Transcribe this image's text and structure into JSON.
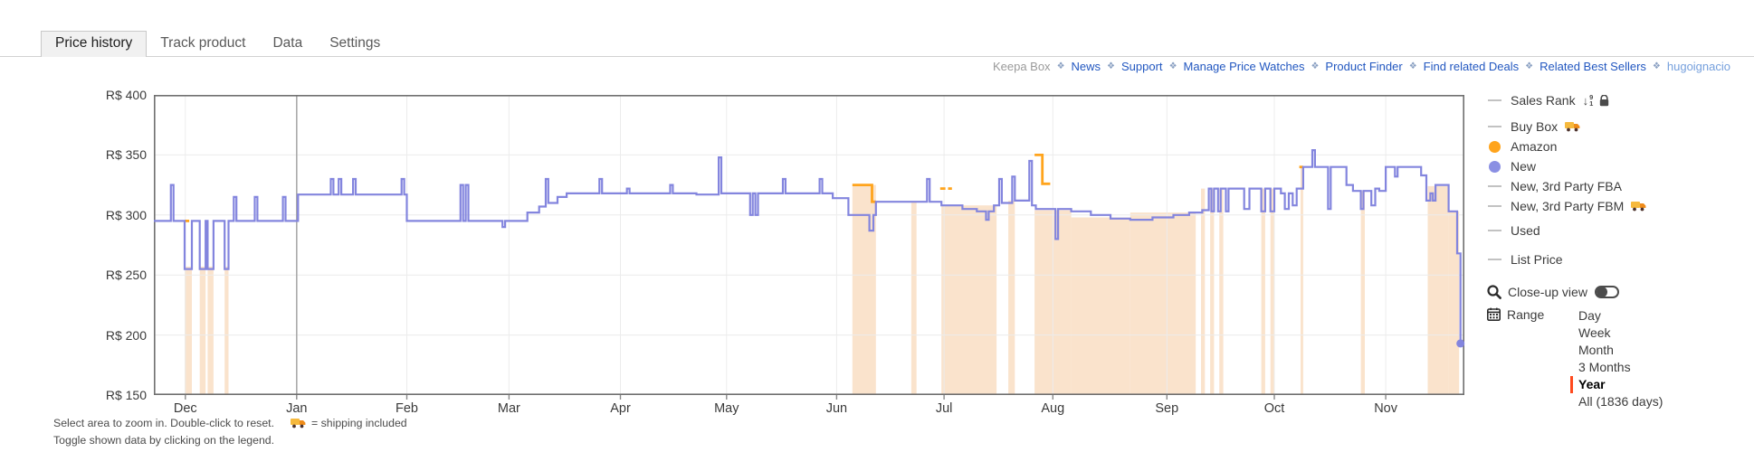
{
  "tabs": [
    {
      "label": "Price history"
    },
    {
      "label": "Track product"
    },
    {
      "label": "Data"
    },
    {
      "label": "Settings"
    }
  ],
  "header": {
    "separator": "❖",
    "links": [
      {
        "label": "Keepa Box"
      },
      {
        "label": "News"
      },
      {
        "label": "Support"
      },
      {
        "label": "Manage Price Watches"
      },
      {
        "label": "Product Finder"
      },
      {
        "label": "Find related Deals"
      },
      {
        "label": "Related Best Sellers"
      },
      {
        "label": "hugoignacio"
      }
    ]
  },
  "legend": {
    "items": [
      {
        "label": "Sales Rank"
      },
      {
        "label": "Buy Box"
      },
      {
        "label": "Amazon"
      },
      {
        "label": "New"
      },
      {
        "label": "New, 3rd Party FBA"
      },
      {
        "label": "New, 3rd Party FBM"
      },
      {
        "label": "Used"
      },
      {
        "label": "List Price"
      }
    ],
    "closeup_label": "Close-up view",
    "range": {
      "label": "Range",
      "options": [
        "Day",
        "Week",
        "Month",
        "3 Months",
        "Year",
        "All (1836 days)"
      ],
      "selected": "Year"
    }
  },
  "footer": {
    "line1": "Select area to zoom in. Double-click to reset.",
    "shipping_note": "= shipping included",
    "line2": "Toggle shown data by clicking on the legend."
  },
  "chart_data": {
    "type": "line",
    "subtype": "step-price-history",
    "currency": "R$",
    "ylim": [
      150,
      400
    ],
    "y_ticks": [
      400,
      350,
      300,
      250,
      200,
      150
    ],
    "y_tick_labels": [
      "R$ 400",
      "R$ 350",
      "R$ 300",
      "R$ 250",
      "R$ 200",
      "R$ 150"
    ],
    "x_months": [
      {
        "label": "Dec",
        "f": 0.024
      },
      {
        "label": "Jan",
        "f": 0.109
      },
      {
        "label": "Feb",
        "f": 0.193
      },
      {
        "label": "Mar",
        "f": 0.271
      },
      {
        "label": "Apr",
        "f": 0.356
      },
      {
        "label": "May",
        "f": 0.437
      },
      {
        "label": "Jun",
        "f": 0.521
      },
      {
        "label": "Jul",
        "f": 0.603
      },
      {
        "label": "Aug",
        "f": 0.686
      },
      {
        "label": "Sep",
        "f": 0.773
      },
      {
        "label": "Oct",
        "f": 0.855
      },
      {
        "label": "Nov",
        "f": 0.94
      }
    ],
    "year_divider_f": 0.109,
    "colors": {
      "new": "#8385DE",
      "amazon": "#FFA41C",
      "band": "#FAE3CC",
      "grid": "#ECECEC",
      "border": "#6F6F6F",
      "year_divider": "#ABABAB"
    },
    "series": [
      {
        "name": "New",
        "style": "step",
        "points": [
          [
            0.0,
            295
          ],
          [
            0.013,
            325
          ],
          [
            0.015,
            295
          ],
          [
            0.0235,
            255
          ],
          [
            0.029,
            295
          ],
          [
            0.035,
            255
          ],
          [
            0.0395,
            295
          ],
          [
            0.041,
            255
          ],
          [
            0.0455,
            295
          ],
          [
            0.054,
            255
          ],
          [
            0.057,
            295
          ],
          [
            0.061,
            315
          ],
          [
            0.063,
            295
          ],
          [
            0.077,
            315
          ],
          [
            0.079,
            295
          ],
          [
            0.0985,
            315
          ],
          [
            0.1005,
            295
          ],
          [
            0.11,
            317
          ],
          [
            0.135,
            330
          ],
          [
            0.137,
            317
          ],
          [
            0.141,
            330
          ],
          [
            0.143,
            317
          ],
          [
            0.152,
            330
          ],
          [
            0.154,
            317
          ],
          [
            0.189,
            330
          ],
          [
            0.191,
            317
          ],
          [
            0.193,
            295
          ],
          [
            0.234,
            325
          ],
          [
            0.236,
            295
          ],
          [
            0.238,
            325
          ],
          [
            0.24,
            295
          ],
          [
            0.266,
            290
          ],
          [
            0.268,
            295
          ],
          [
            0.285,
            302
          ],
          [
            0.294,
            307
          ],
          [
            0.299,
            330
          ],
          [
            0.301,
            310
          ],
          [
            0.308,
            315
          ],
          [
            0.315,
            318
          ],
          [
            0.34,
            330
          ],
          [
            0.342,
            318
          ],
          [
            0.361,
            322
          ],
          [
            0.363,
            318
          ],
          [
            0.394,
            325
          ],
          [
            0.396,
            318
          ],
          [
            0.414,
            317
          ],
          [
            0.431,
            348
          ],
          [
            0.433,
            318
          ],
          [
            0.455,
            300
          ],
          [
            0.457,
            318
          ],
          [
            0.459,
            300
          ],
          [
            0.461,
            318
          ],
          [
            0.48,
            330
          ],
          [
            0.482,
            318
          ],
          [
            0.508,
            330
          ],
          [
            0.51,
            318
          ],
          [
            0.518,
            314
          ],
          [
            0.53,
            300
          ],
          [
            0.546,
            287
          ],
          [
            0.549,
            300
          ],
          [
            0.551,
            311
          ],
          [
            0.59,
            330
          ],
          [
            0.592,
            311
          ],
          [
            0.601,
            308
          ],
          [
            0.617,
            305
          ],
          [
            0.628,
            303
          ],
          [
            0.635,
            296
          ],
          [
            0.637,
            303
          ],
          [
            0.641,
            308
          ],
          [
            0.645,
            330
          ],
          [
            0.647,
            310
          ],
          [
            0.655,
            332
          ],
          [
            0.657,
            312
          ],
          [
            0.668,
            345
          ],
          [
            0.67,
            308
          ],
          [
            0.673,
            305
          ],
          [
            0.688,
            280
          ],
          [
            0.69,
            305
          ],
          [
            0.7,
            303
          ],
          [
            0.715,
            300
          ],
          [
            0.73,
            297
          ],
          [
            0.745,
            296
          ],
          [
            0.762,
            298
          ],
          [
            0.778,
            300
          ],
          [
            0.79,
            302
          ],
          [
            0.8,
            304
          ],
          [
            0.805,
            322
          ],
          [
            0.807,
            303
          ],
          [
            0.809,
            322
          ],
          [
            0.812,
            303
          ],
          [
            0.814,
            322
          ],
          [
            0.818,
            303
          ],
          [
            0.82,
            322
          ],
          [
            0.832,
            305
          ],
          [
            0.836,
            322
          ],
          [
            0.845,
            303
          ],
          [
            0.848,
            322
          ],
          [
            0.852,
            303
          ],
          [
            0.855,
            322
          ],
          [
            0.86,
            318
          ],
          [
            0.863,
            305
          ],
          [
            0.866,
            318
          ],
          [
            0.869,
            308
          ],
          [
            0.872,
            322
          ],
          [
            0.877,
            340
          ],
          [
            0.884,
            354
          ],
          [
            0.886,
            340
          ],
          [
            0.896,
            305
          ],
          [
            0.898,
            340
          ],
          [
            0.91,
            325
          ],
          [
            0.915,
            320
          ],
          [
            0.921,
            305
          ],
          [
            0.923,
            320
          ],
          [
            0.929,
            308
          ],
          [
            0.932,
            322
          ],
          [
            0.935,
            320
          ],
          [
            0.94,
            340
          ],
          [
            0.947,
            332
          ],
          [
            0.949,
            340
          ],
          [
            0.967,
            333
          ],
          [
            0.971,
            312
          ],
          [
            0.974,
            318
          ],
          [
            0.976,
            312
          ],
          [
            0.978,
            325
          ],
          [
            0.988,
            303
          ],
          [
            0.9945,
            268
          ],
          [
            0.997,
            193
          ]
        ],
        "end_dot": [
          0.997,
          193
        ]
      },
      {
        "name": "Amazon",
        "style": "step-segments",
        "segments": [
          [
            [
              0.0235,
              295
            ],
            [
              0.027,
              295
            ]
          ],
          [
            [
              0.533,
              325
            ],
            [
              0.546,
              325
            ],
            [
              0.548,
              311
            ],
            [
              0.551,
              311
            ]
          ],
          [
            [
              0.6,
              322
            ],
            [
              0.604,
              322
            ]
          ],
          [
            [
              0.606,
              322
            ],
            [
              0.609,
              322
            ]
          ],
          [
            [
              0.672,
              350
            ],
            [
              0.677,
              350
            ],
            [
              0.678,
              326
            ],
            [
              0.684,
              326
            ]
          ],
          [
            [
              0.874,
              340
            ],
            [
              0.877,
              340
            ]
          ]
        ]
      }
    ],
    "availability_bands": [
      [
        0.0235,
        0.029,
        257
      ],
      [
        0.035,
        0.0395,
        257
      ],
      [
        0.041,
        0.0455,
        257
      ],
      [
        0.054,
        0.057,
        257
      ],
      [
        0.533,
        0.551,
        325
      ],
      [
        0.578,
        0.582,
        311
      ],
      [
        0.601,
        0.643,
        308
      ],
      [
        0.652,
        0.657,
        312
      ],
      [
        0.672,
        0.7,
        304
      ],
      [
        0.7,
        0.745,
        298
      ],
      [
        0.745,
        0.795,
        302
      ],
      [
        0.799,
        0.802,
        322
      ],
      [
        0.806,
        0.809,
        322
      ],
      [
        0.813,
        0.816,
        322
      ],
      [
        0.845,
        0.848,
        322
      ],
      [
        0.852,
        0.855,
        322
      ],
      [
        0.875,
        0.877,
        340
      ],
      [
        0.921,
        0.924,
        320
      ],
      [
        0.972,
        0.988,
        324
      ],
      [
        0.988,
        0.996,
        303
      ]
    ]
  }
}
